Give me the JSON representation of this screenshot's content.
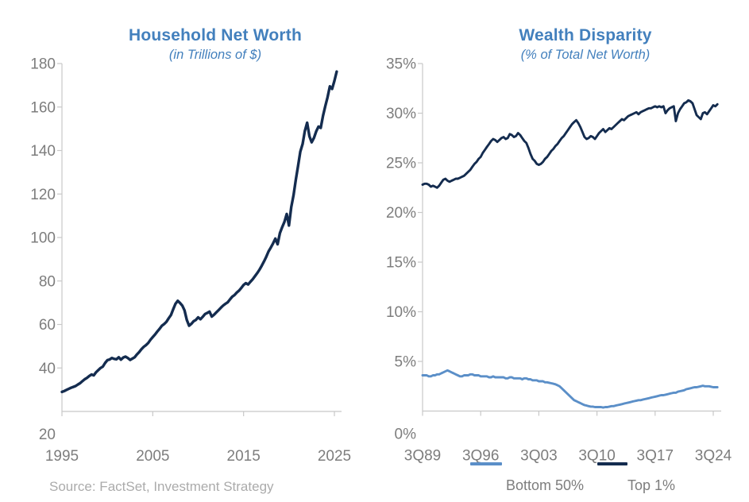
{
  "colors": {
    "title": "#4380BD",
    "navy": "#142C4F",
    "light_blue": "#5B8FC8",
    "axis": "#C8C8C8",
    "tick_text": "#7D7D7D",
    "legend_text": "#7D7D7D",
    "source_text": "#ABABAB",
    "background": "#FFFFFF"
  },
  "source_note": "Source: FactSet, Investment Strategy",
  "chart_data": [
    {
      "type": "line",
      "title": "Household Net Worth",
      "subtitle": "(in Trillions of $)",
      "grid": false,
      "legend_position": "none",
      "xlim": [
        1995,
        2025
      ],
      "ylim": [
        20,
        180
      ],
      "x_axis": {
        "ticks": [
          {
            "v": 1995,
            "label": "1995"
          },
          {
            "v": 2005,
            "label": "2005"
          },
          {
            "v": 2015,
            "label": "2015"
          },
          {
            "v": 2025,
            "label": "2025"
          }
        ]
      },
      "y_axis": {
        "ticks": [
          {
            "v": 180,
            "label": "180"
          },
          {
            "v": 160,
            "label": "160"
          },
          {
            "v": 140,
            "label": "140"
          },
          {
            "v": 120,
            "label": "120"
          },
          {
            "v": 100,
            "label": "100"
          },
          {
            "v": 80,
            "label": "80"
          },
          {
            "v": 60,
            "label": "60"
          },
          {
            "v": 40,
            "label": "40"
          }
        ],
        "min_label": "20"
      },
      "series": [
        {
          "id": "net-worth",
          "name": "Household Net Worth",
          "color": "navy",
          "start": 1995.0,
          "step": 0.25,
          "values": [
            29.0,
            29.4,
            29.9,
            30.4,
            30.9,
            31.3,
            31.7,
            32.4,
            33.0,
            33.9,
            34.8,
            35.4,
            36.3,
            37.0,
            36.6,
            38.0,
            39.0,
            40.0,
            40.6,
            42.3,
            43.6,
            43.9,
            44.6,
            44.2,
            44.0,
            44.9,
            43.8,
            44.8,
            45.2,
            44.6,
            43.7,
            44.3,
            44.9,
            46.2,
            47.3,
            48.6,
            49.7,
            50.5,
            51.5,
            53.0,
            54.2,
            55.4,
            56.8,
            58.0,
            59.4,
            60.2,
            61.2,
            62.8,
            64.3,
            67.0,
            69.5,
            70.9,
            69.9,
            68.7,
            66.5,
            62.1,
            59.4,
            60.3,
            61.5,
            62.1,
            63.3,
            62.4,
            63.5,
            64.8,
            65.3,
            65.9,
            63.6,
            64.5,
            65.6,
            66.6,
            67.7,
            68.7,
            69.5,
            70.2,
            71.5,
            72.8,
            73.5,
            74.7,
            75.6,
            76.8,
            78.2,
            79.0,
            78.4,
            79.6,
            80.8,
            82.2,
            83.6,
            85.2,
            87.0,
            89.0,
            91.2,
            93.6,
            95.4,
            97.3,
            99.5,
            96.9,
            102.0,
            104.8,
            107.2,
            110.8,
            105.5,
            114.0,
            119.5,
            126.5,
            133.0,
            139.5,
            143.0,
            149.0,
            152.8,
            146.5,
            143.8,
            145.8,
            148.8,
            151.0,
            150.4,
            156.0,
            160.5,
            164.5,
            169.5,
            168.3,
            172.0,
            176.3
          ]
        }
      ]
    },
    {
      "type": "line",
      "title": "Wealth Disparity",
      "subtitle": "(% of Total Net Worth)",
      "grid": false,
      "legend_position": "bottom",
      "xlim": [
        1989.75,
        2024.75
      ],
      "ylim": [
        0,
        35
      ],
      "x_axis": {
        "ticks": [
          {
            "v": 1989.75,
            "label": "3Q89"
          },
          {
            "v": 1996.75,
            "label": "3Q96"
          },
          {
            "v": 2003.75,
            "label": "3Q03"
          },
          {
            "v": 2010.75,
            "label": "3Q10"
          },
          {
            "v": 2017.75,
            "label": "3Q17"
          },
          {
            "v": 2024.75,
            "label": "3Q24"
          }
        ]
      },
      "y_axis": {
        "ticks": [
          {
            "v": 35,
            "label": "35%"
          },
          {
            "v": 30,
            "label": "30%"
          },
          {
            "v": 25,
            "label": "25%"
          },
          {
            "v": 20,
            "label": "20%"
          },
          {
            "v": 15,
            "label": "15%"
          },
          {
            "v": 10,
            "label": "10%"
          },
          {
            "v": 5,
            "label": "5%"
          }
        ],
        "min_label": "0%"
      },
      "series": [
        {
          "id": "bottom-50",
          "name": "Bottom 50%",
          "color": "light_blue",
          "start": 1989.75,
          "step": 0.25,
          "values": [
            3.6,
            3.6,
            3.6,
            3.5,
            3.5,
            3.6,
            3.6,
            3.7,
            3.7,
            3.8,
            3.9,
            4.0,
            4.1,
            4.0,
            3.9,
            3.8,
            3.7,
            3.6,
            3.5,
            3.5,
            3.6,
            3.6,
            3.6,
            3.7,
            3.7,
            3.6,
            3.6,
            3.6,
            3.5,
            3.5,
            3.5,
            3.5,
            3.4,
            3.4,
            3.5,
            3.4,
            3.4,
            3.4,
            3.4,
            3.4,
            3.3,
            3.3,
            3.4,
            3.4,
            3.3,
            3.3,
            3.3,
            3.3,
            3.2,
            3.3,
            3.3,
            3.2,
            3.2,
            3.1,
            3.1,
            3.1,
            3.0,
            3.0,
            3.0,
            2.9,
            2.9,
            2.85,
            2.8,
            2.75,
            2.7,
            2.6,
            2.5,
            2.3,
            2.1,
            1.9,
            1.7,
            1.5,
            1.3,
            1.1,
            1.0,
            0.9,
            0.8,
            0.7,
            0.6,
            0.55,
            0.5,
            0.45,
            0.45,
            0.4,
            0.4,
            0.4,
            0.4,
            0.35,
            0.4,
            0.4,
            0.45,
            0.5,
            0.5,
            0.55,
            0.6,
            0.65,
            0.7,
            0.75,
            0.8,
            0.85,
            0.9,
            0.95,
            1.0,
            1.05,
            1.1,
            1.1,
            1.15,
            1.2,
            1.25,
            1.3,
            1.35,
            1.4,
            1.45,
            1.5,
            1.55,
            1.6,
            1.6,
            1.65,
            1.7,
            1.75,
            1.8,
            1.85,
            1.85,
            1.95,
            2.0,
            2.05,
            2.1,
            2.2,
            2.25,
            2.3,
            2.35,
            2.4,
            2.4,
            2.45,
            2.5,
            2.55,
            2.5,
            2.5,
            2.5,
            2.45,
            2.4,
            2.4,
            2.4
          ]
        },
        {
          "id": "top-1",
          "name": "Top 1%",
          "color": "navy",
          "start": 1989.75,
          "step": 0.25,
          "values": [
            22.8,
            22.9,
            22.9,
            22.8,
            22.6,
            22.7,
            22.6,
            22.5,
            22.7,
            23.0,
            23.3,
            23.4,
            23.2,
            23.1,
            23.2,
            23.3,
            23.4,
            23.4,
            23.5,
            23.6,
            23.7,
            23.9,
            24.1,
            24.3,
            24.6,
            24.9,
            25.1,
            25.4,
            25.6,
            26.0,
            26.3,
            26.6,
            26.9,
            27.2,
            27.4,
            27.3,
            27.1,
            27.3,
            27.5,
            27.6,
            27.4,
            27.5,
            27.9,
            27.8,
            27.6,
            27.7,
            28.0,
            27.8,
            27.5,
            27.2,
            27.0,
            26.5,
            25.9,
            25.4,
            25.2,
            24.9,
            24.8,
            24.9,
            25.1,
            25.4,
            25.6,
            25.9,
            26.2,
            26.4,
            26.7,
            26.9,
            27.2,
            27.5,
            27.7,
            28.0,
            28.3,
            28.6,
            28.9,
            29.1,
            29.3,
            29.0,
            28.6,
            28.1,
            27.6,
            27.4,
            27.5,
            27.7,
            27.6,
            27.4,
            27.7,
            28.0,
            28.2,
            28.4,
            28.1,
            28.3,
            28.5,
            28.4,
            28.6,
            28.8,
            29.0,
            29.2,
            29.4,
            29.3,
            29.5,
            29.7,
            29.8,
            29.9,
            30.0,
            30.1,
            29.9,
            30.1,
            30.2,
            30.3,
            30.4,
            30.5,
            30.5,
            30.6,
            30.7,
            30.6,
            30.7,
            30.6,
            30.7,
            30.0,
            30.3,
            30.5,
            30.6,
            30.7,
            29.2,
            30.0,
            30.4,
            30.7,
            31.0,
            31.1,
            31.3,
            31.2,
            31.0,
            30.4,
            29.8,
            29.6,
            29.4,
            30.0,
            30.1,
            29.9,
            30.2,
            30.5,
            30.8,
            30.7,
            30.9
          ]
        }
      ]
    }
  ]
}
